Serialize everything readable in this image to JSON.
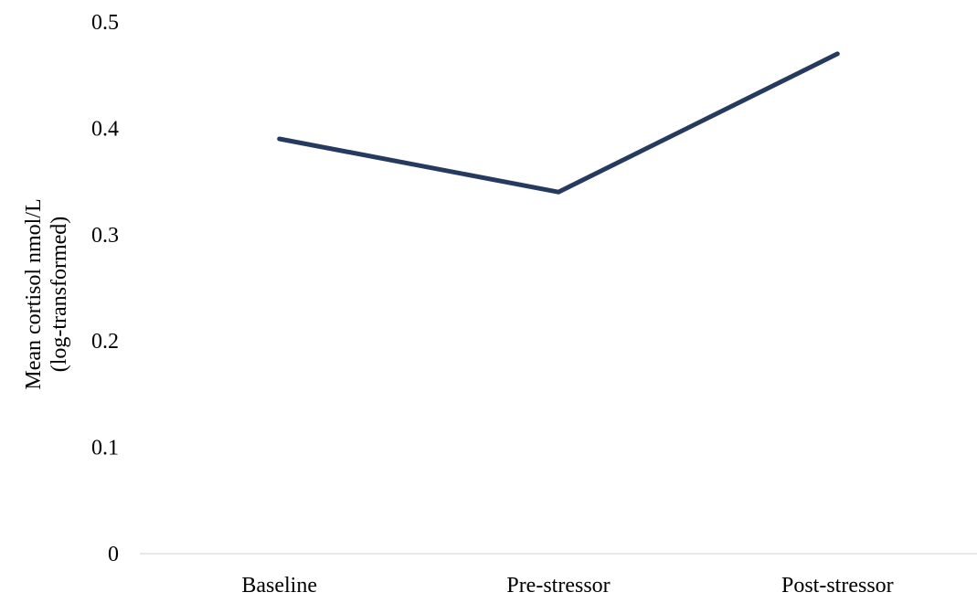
{
  "chart_data": {
    "type": "line",
    "categories": [
      "Baseline",
      "Pre-stressor",
      "Post-stressor"
    ],
    "series": [
      {
        "values": [
          0.39,
          0.34,
          0.47
        ]
      }
    ],
    "title": "",
    "xlabel": "",
    "ylabel_lines": [
      "Mean cortisol nmol/L",
      "(log-transformed)"
    ],
    "ylim": [
      0,
      0.5
    ],
    "yticks": [
      0,
      0.1,
      0.2,
      0.3,
      0.4,
      0.5
    ],
    "ytick_labels": [
      "0",
      "0.1",
      "0.2",
      "0.3",
      "0.4",
      "0.5"
    ],
    "grid": false,
    "legend": "none",
    "colors": {
      "line": "#253a5e",
      "axis": "#d9d9d9",
      "text": "#000000"
    }
  }
}
